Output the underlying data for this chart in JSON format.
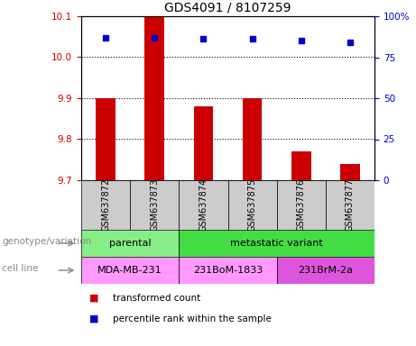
{
  "title": "GDS4091 / 8107259",
  "samples": [
    "GSM637872",
    "GSM637873",
    "GSM637874",
    "GSM637875",
    "GSM637876",
    "GSM637877"
  ],
  "bar_values": [
    9.9,
    10.1,
    9.88,
    9.9,
    9.77,
    9.74
  ],
  "percentile_values": [
    87,
    87,
    86,
    86,
    85,
    84
  ],
  "ylim_left": [
    9.7,
    10.1
  ],
  "ylim_right": [
    0,
    100
  ],
  "yticks_left": [
    9.7,
    9.8,
    9.9,
    10.0,
    10.1
  ],
  "yticks_right": [
    0,
    25,
    50,
    75,
    100
  ],
  "bar_color": "#cc0000",
  "dot_color": "#0000cc",
  "sample_box_color": "#cccccc",
  "genotype_groups": [
    {
      "label": "parental",
      "start": 0,
      "end": 2,
      "color": "#88ee88"
    },
    {
      "label": "metastatic variant",
      "start": 2,
      "end": 6,
      "color": "#44dd44"
    }
  ],
  "cell_line_groups": [
    {
      "label": "MDA-MB-231",
      "start": 0,
      "end": 2,
      "color": "#ff99ff"
    },
    {
      "label": "231BoM-1833",
      "start": 2,
      "end": 4,
      "color": "#ff99ff"
    },
    {
      "label": "231BrM-2a",
      "start": 4,
      "end": 6,
      "color": "#dd55dd"
    }
  ],
  "legend_items": [
    {
      "color": "#cc0000",
      "label": "transformed count"
    },
    {
      "color": "#0000cc",
      "label": "percentile rank within the sample"
    }
  ],
  "left_label_color": "#888888",
  "arrow_color": "#888888"
}
